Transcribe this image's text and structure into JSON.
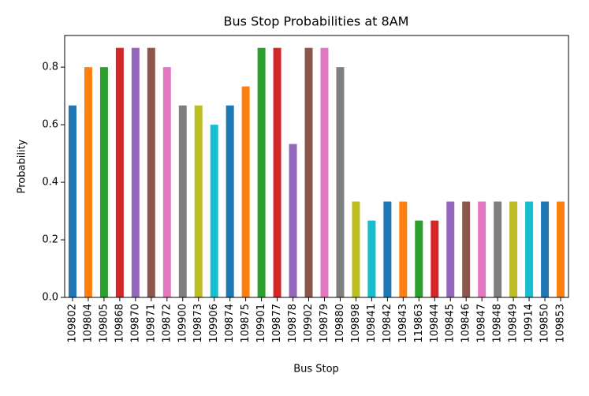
{
  "chart_data": {
    "type": "bar",
    "title": "Bus Stop Probabilities at 8AM",
    "x_label": "Bus Stop",
    "y_label": "Probability",
    "categories": [
      "109802",
      "109804",
      "109805",
      "109868",
      "109870",
      "109871",
      "109872",
      "109900",
      "109873",
      "109906",
      "109874",
      "109875",
      "109901",
      "109877",
      "109878",
      "109902",
      "109879",
      "109880",
      "109898",
      "109841",
      "109842",
      "109843",
      "119863",
      "109844",
      "109845",
      "109846",
      "109847",
      "109848",
      "109849",
      "109914",
      "109850",
      "109853"
    ],
    "values": [
      0.667,
      0.8,
      0.8,
      0.867,
      0.867,
      0.867,
      0.8,
      0.667,
      0.667,
      0.6,
      0.667,
      0.733,
      0.867,
      0.867,
      0.533,
      0.867,
      0.867,
      0.8,
      0.333,
      0.267,
      0.333,
      0.333,
      0.267,
      0.267,
      0.333,
      0.333,
      0.333,
      0.333,
      0.333,
      0.333,
      0.333,
      0.333
    ],
    "colors": [
      "#1f77b4",
      "#ff7f0e",
      "#2ca02c",
      "#d62728",
      "#9467bd",
      "#8c564b",
      "#e377c2",
      "#7f7f7f",
      "#bcbd22",
      "#17becf"
    ],
    "ylim": [
      0,
      0.91
    ],
    "yticks": [
      {
        "value": 0,
        "label": "0.0"
      },
      0.2,
      0.4,
      0.6,
      0.8
    ],
    "grid": false
  }
}
